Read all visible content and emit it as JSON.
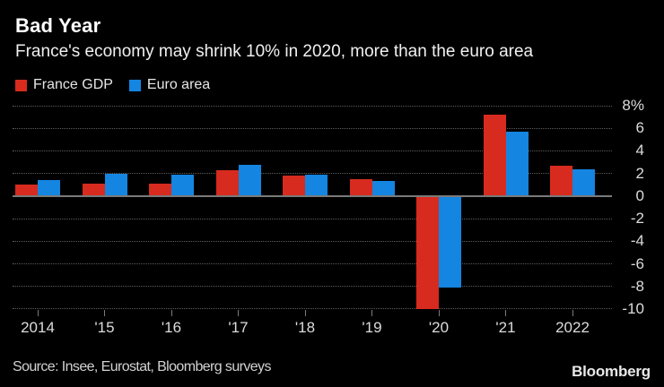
{
  "chart_data": {
    "type": "bar",
    "title": "Bad Year",
    "subtitle": "France's economy may shrink 10% in 2020, more than the euro area",
    "categories": [
      "2014",
      "'15",
      "'16",
      "'17",
      "'18",
      "'19",
      "'20",
      "'21",
      "2022"
    ],
    "series": [
      {
        "name": "France GDP",
        "color": "#d62b1e",
        "values": [
          1.0,
          1.1,
          1.1,
          2.3,
          1.8,
          1.5,
          -10.0,
          7.2,
          2.7
        ]
      },
      {
        "name": "Euro area",
        "color": "#1485e0",
        "values": [
          1.4,
          2.0,
          1.9,
          2.8,
          1.9,
          1.3,
          -8.1,
          5.7,
          2.4
        ]
      }
    ],
    "ylim": [
      -10,
      8
    ],
    "yticks": [
      8,
      6,
      4,
      2,
      0,
      -2,
      -4,
      -6,
      -8,
      -10
    ],
    "ytick_labels": [
      "8%",
      "6",
      "4",
      "2",
      "0",
      "-2",
      "-4",
      "-6",
      "-8",
      "-10"
    ],
    "y_unit": "%",
    "grid": "horizontal-dotted",
    "legend_position": "top-left",
    "axis_colors": {
      "gridline": "#5e5e5e",
      "zero_line": "#7a7a7a",
      "labels": "#dcdcdc"
    },
    "background": "#000000"
  },
  "footer": {
    "source": "Source: Insee, Eurostat, Bloomberg surveys",
    "brand": "Bloomberg"
  }
}
